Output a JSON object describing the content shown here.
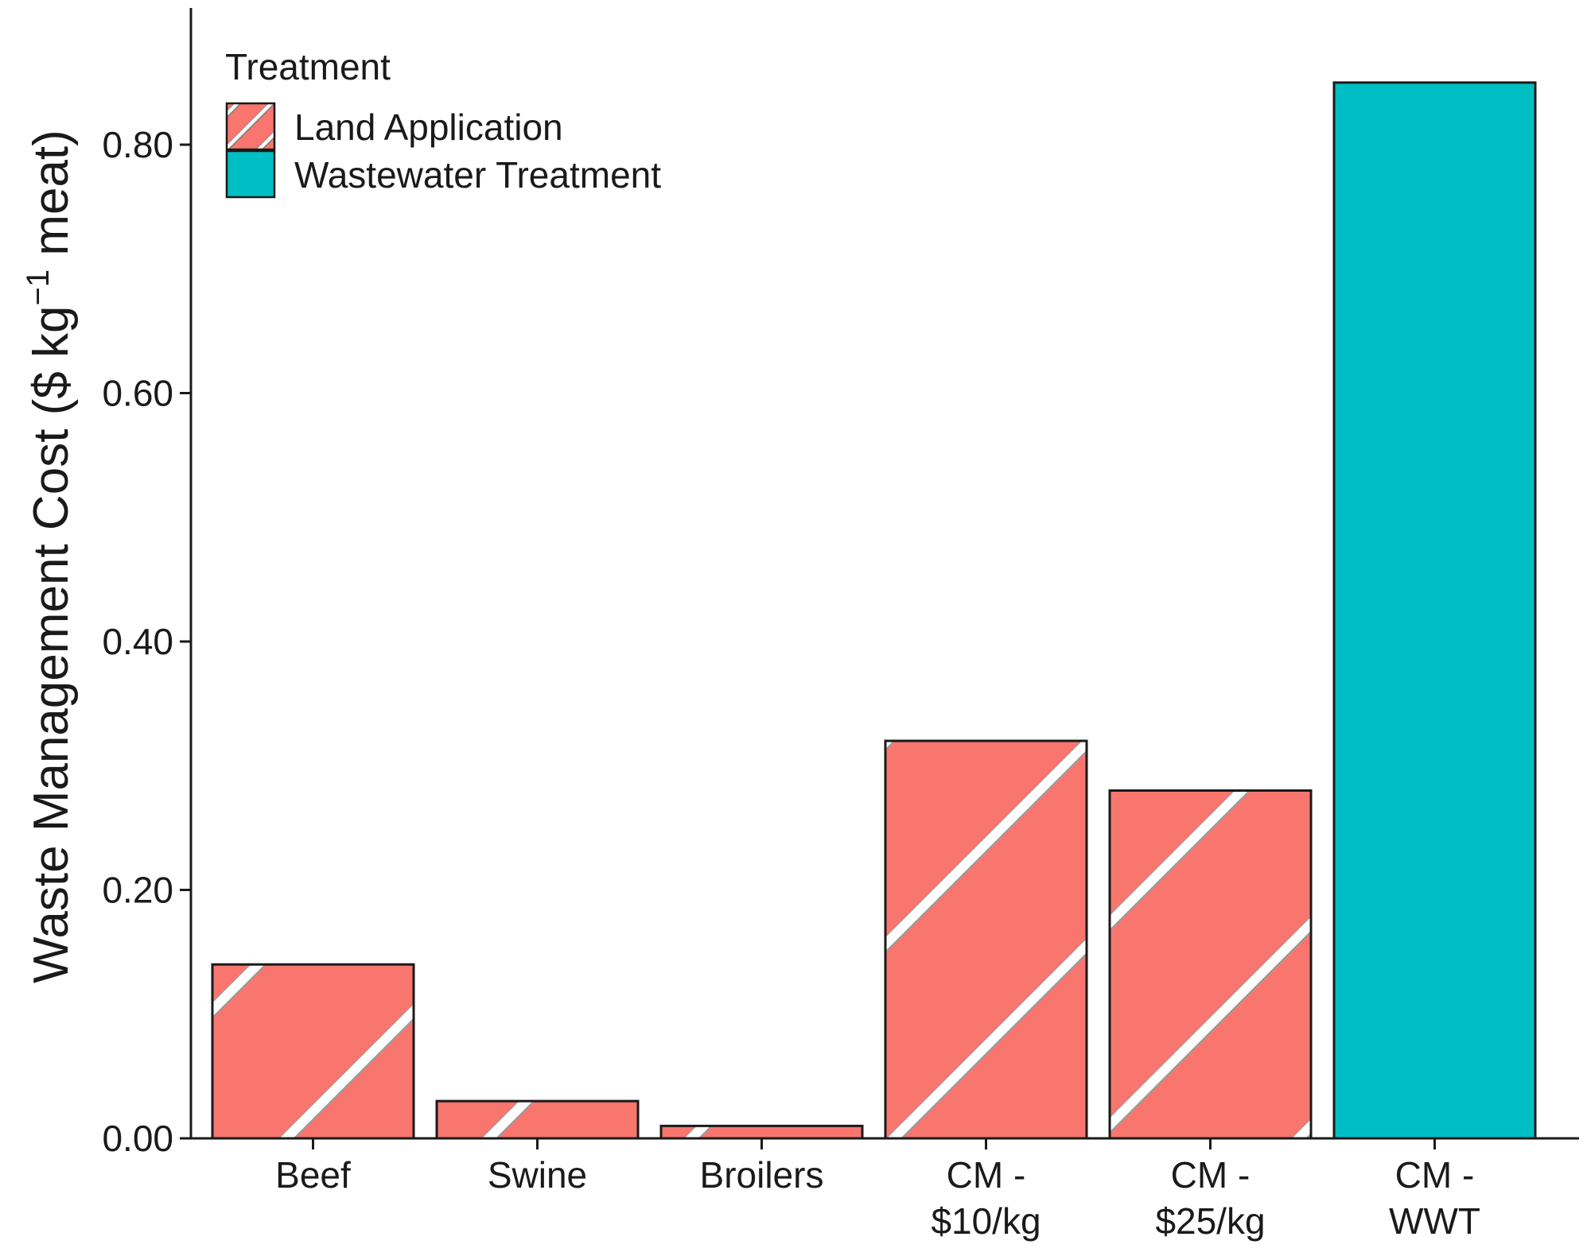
{
  "chart_data": {
    "type": "bar",
    "title": "",
    "xlabel": "",
    "ylabel": {
      "main": "Waste Management Cost  ($ kg",
      "superscript": "−1",
      "suffix": " meat)"
    },
    "ylim": [
      0,
      0.88
    ],
    "yticks": [
      0.0,
      0.2,
      0.4,
      0.6,
      0.8
    ],
    "ytick_labels": [
      "0.00",
      "0.20",
      "0.40",
      "0.60",
      "0.80"
    ],
    "grid": false,
    "categories": [
      [
        "Beef"
      ],
      [
        "Swine"
      ],
      [
        "Broilers"
      ],
      [
        "CM -",
        "$10/kg"
      ],
      [
        "CM -",
        "$25/kg"
      ],
      [
        "CM -",
        "WWT"
      ]
    ],
    "values": [
      0.14,
      0.03,
      0.01,
      0.32,
      0.28,
      0.85
    ],
    "treatment": [
      "Land Application",
      "Land Application",
      "Land Application",
      "Land Application",
      "Land Application",
      "Wastewater Treatment"
    ],
    "legend": {
      "title": "Treatment",
      "position": "top-left",
      "entries": [
        {
          "label": "Land Application",
          "color": "#F8766D",
          "pattern": "stripe"
        },
        {
          "label": "Wastewater Treatment",
          "color": "#00BFC4",
          "pattern": "none"
        }
      ]
    },
    "colors": {
      "Land Application": "#F8766D",
      "Wastewater Treatment": "#00BFC4",
      "outline": "#1a1a1a",
      "stripe": "#ffffff"
    }
  }
}
